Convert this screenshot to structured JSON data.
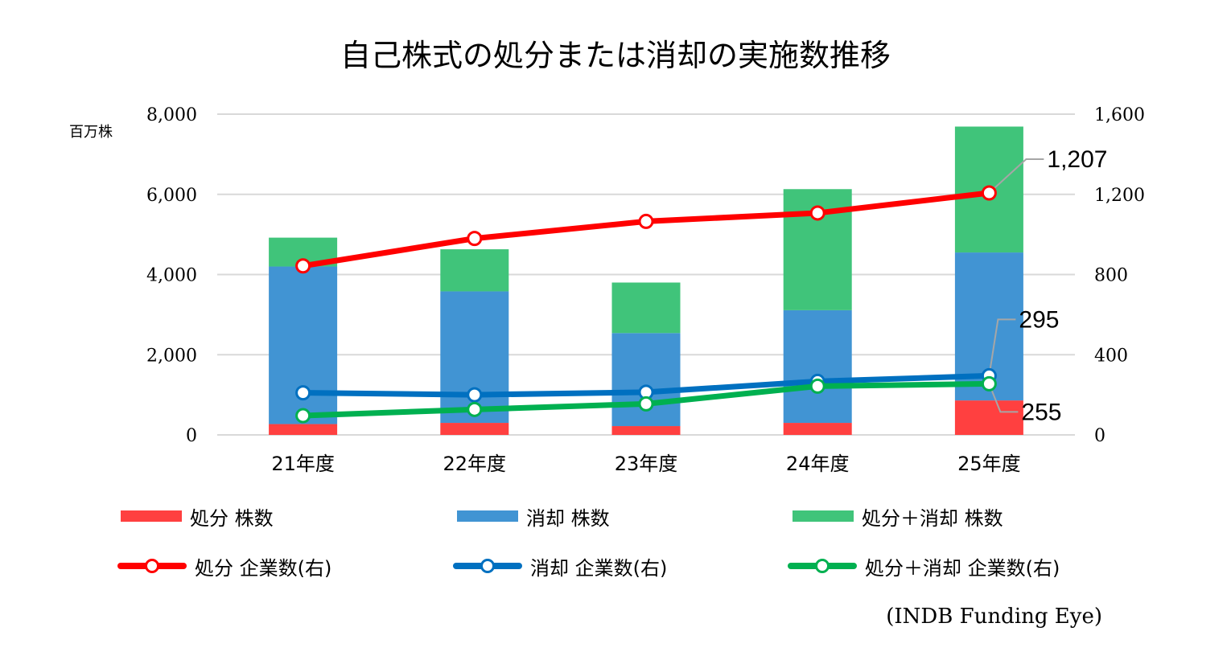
{
  "chart_data": {
    "type": "bar",
    "title": "自己株式の処分または消却の実施数推移",
    "categories": [
      "21年度",
      "22年度",
      "23年度",
      "24年度",
      "25年度"
    ],
    "left_axis": {
      "unit_label": "百万株",
      "ylim": [
        0,
        8000
      ],
      "ticks": [
        "0",
        "2,000",
        "4,000",
        "6,000",
        "8,000"
      ]
    },
    "right_axis": {
      "ylim": [
        0,
        1600
      ],
      "ticks": [
        "0",
        "400",
        "800",
        "1,200",
        "1,600"
      ]
    },
    "bar_series": [
      {
        "name": "処分 株数",
        "color": "#ff4040",
        "values": [
          270,
          300,
          220,
          300,
          860
        ]
      },
      {
        "name": "消却 株数",
        "color": "#4194d3",
        "values": [
          3930,
          3280,
          2320,
          2810,
          3690
        ]
      },
      {
        "name": "処分＋消却 株数",
        "color": "#40c47a",
        "values": [
          720,
          1050,
          1260,
          3020,
          3140
        ]
      }
    ],
    "line_series": [
      {
        "name": "処分 企業数(右)",
        "color": "#ff0000",
        "axis": "right",
        "values": [
          843,
          980,
          1065,
          1107,
          1207
        ]
      },
      {
        "name": "消却 企業数(右)",
        "color": "#0070c0",
        "axis": "right",
        "values": [
          210,
          200,
          213,
          267,
          295
        ]
      },
      {
        "name": "処分＋消却 企業数(右)",
        "color": "#00b050",
        "axis": "right",
        "values": [
          96,
          127,
          155,
          243,
          255
        ]
      }
    ],
    "data_labels": [
      {
        "series": "処分 企業数(右)",
        "index": 4,
        "text": "1,207"
      },
      {
        "series": "消却 企業数(右)",
        "index": 4,
        "text": "295"
      },
      {
        "series": "処分＋消却 企業数(右)",
        "index": 4,
        "text": "255"
      }
    ],
    "grid": true,
    "legend_position": "bottom"
  },
  "source_label": "(INDB Funding Eye)"
}
